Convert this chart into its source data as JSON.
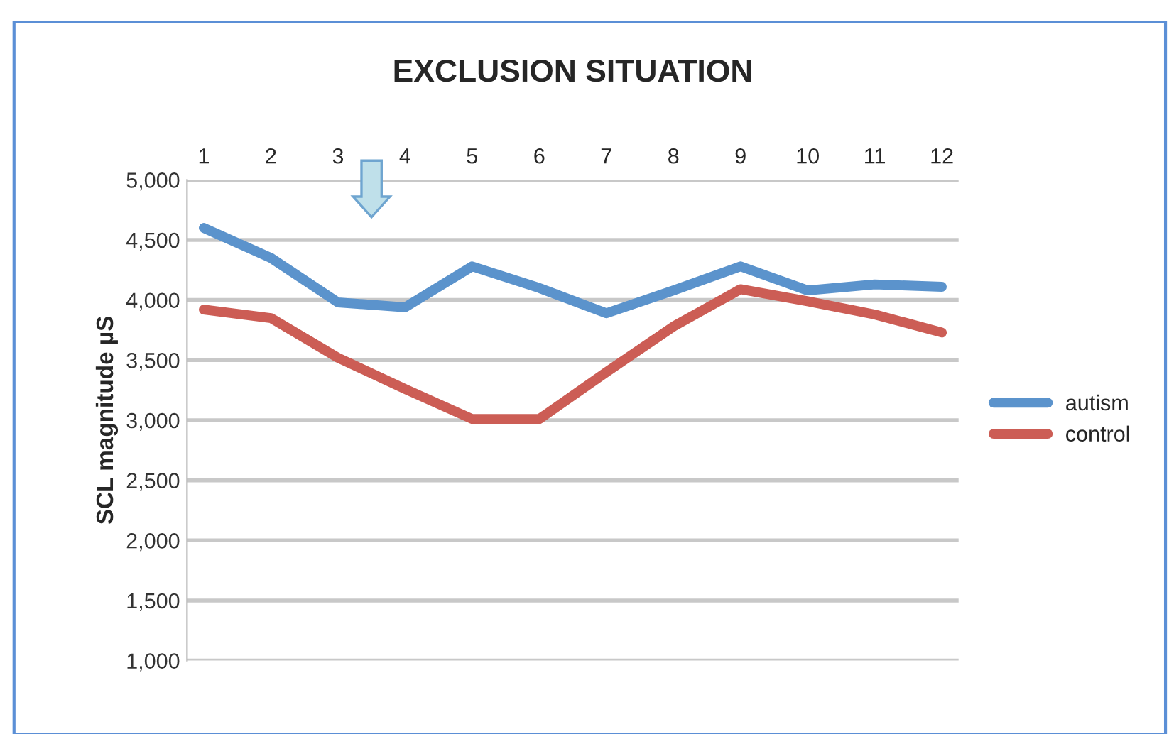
{
  "chart_data": {
    "type": "line",
    "title": "EXCLUSION SITUATION",
    "ylabel": "SCL magnitude µS",
    "categories": [
      "1",
      "2",
      "3",
      "4",
      "5",
      "6",
      "7",
      "8",
      "9",
      "10",
      "11",
      "12"
    ],
    "series": [
      {
        "name": "autism",
        "color": "#5b93cc",
        "values": [
          4600,
          4350,
          3980,
          3940,
          4280,
          4100,
          3890,
          4080,
          4280,
          4080,
          4130,
          4110
        ]
      },
      {
        "name": "control",
        "color": "#cc5d55",
        "values": [
          3920,
          3850,
          3520,
          3260,
          3010,
          3010,
          3400,
          3780,
          4090,
          3990,
          3880,
          3730
        ]
      }
    ],
    "ylim": [
      1000,
      5000
    ],
    "yticks": [
      {
        "value": 1000,
        "label": "1,000"
      },
      {
        "value": 1500,
        "label": "1,500"
      },
      {
        "value": 2000,
        "label": "2,000"
      },
      {
        "value": 2500,
        "label": "2,500"
      },
      {
        "value": 3000,
        "label": "3,000"
      },
      {
        "value": 3500,
        "label": "3,500"
      },
      {
        "value": 4000,
        "label": "4,000"
      },
      {
        "value": 4500,
        "label": "4,500"
      },
      {
        "value": 5000,
        "label": "5,000"
      }
    ],
    "grid": "y",
    "legend": "right",
    "marker": "none",
    "line_style": "solid"
  }
}
